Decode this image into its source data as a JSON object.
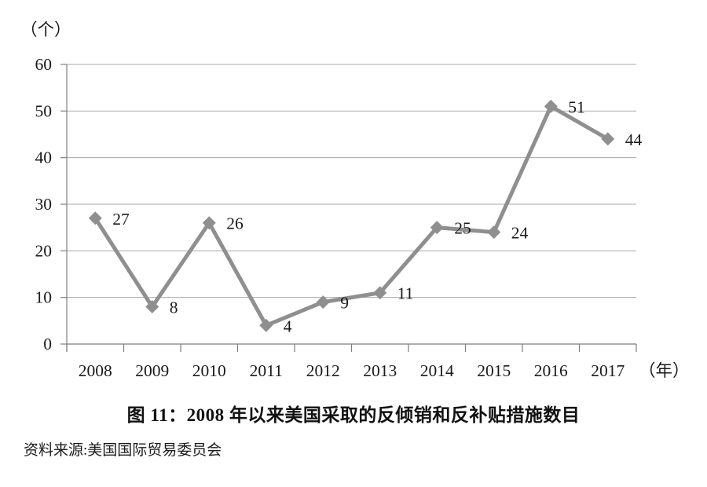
{
  "chart_data": {
    "type": "line",
    "title": "图 11：2008 年以来美国采取的反倾销和反补贴措施数目",
    "source": "资料来源:美国国际贸易委员会",
    "y_unit_label": "（个）",
    "x_unit_label": "（年）",
    "categories": [
      "2008",
      "2009",
      "2010",
      "2011",
      "2012",
      "2013",
      "2014",
      "2015",
      "2016",
      "2017"
    ],
    "values": [
      27,
      8,
      26,
      4,
      9,
      11,
      25,
      24,
      51,
      44
    ],
    "ylim": [
      0,
      60
    ],
    "yticks": [
      0,
      10,
      20,
      30,
      40,
      50,
      60
    ],
    "grid": "horizontal",
    "legend": "none",
    "marker": "diamond",
    "colors": {
      "line": "#8f8f8f",
      "marker": "#8f8f8f",
      "grid": "#a9a9a9",
      "axis": "#7f7f7f",
      "text": "#1a1a1a"
    }
  }
}
